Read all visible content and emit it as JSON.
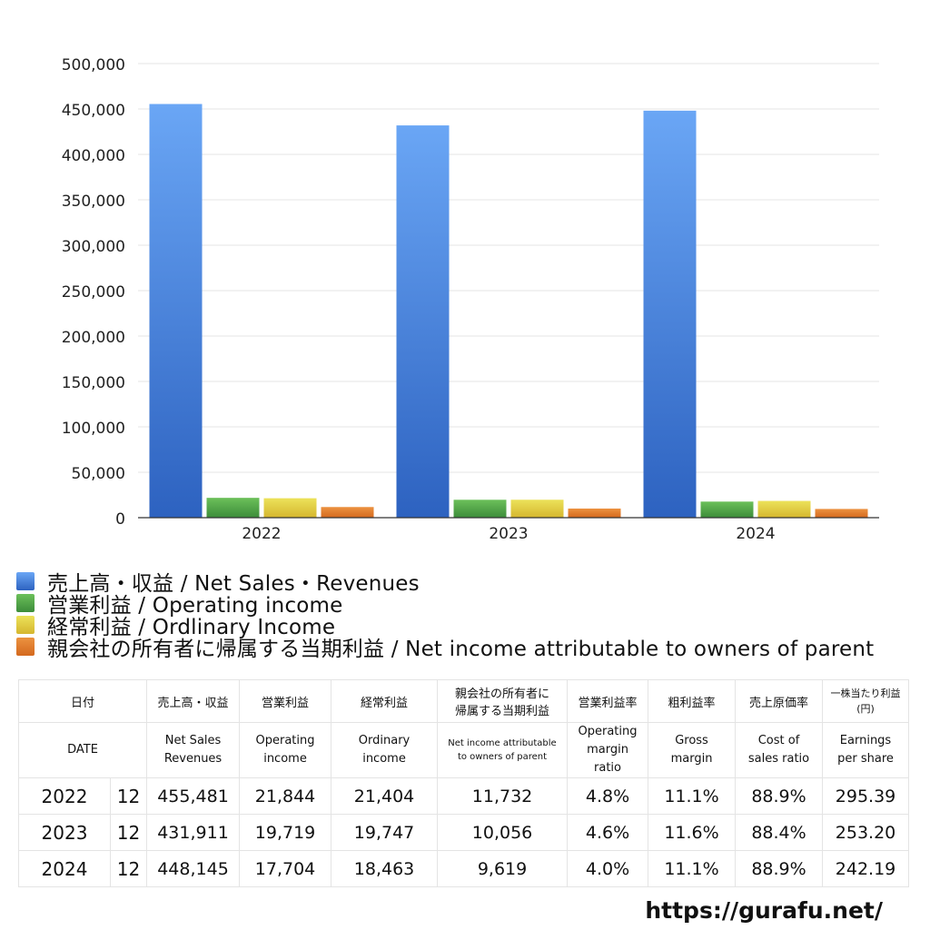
{
  "chart_data": {
    "type": "bar",
    "categories": [
      "2022",
      "2023",
      "2024"
    ],
    "ylim": [
      0,
      500000
    ],
    "yticks": [
      0,
      50000,
      100000,
      150000,
      200000,
      250000,
      300000,
      350000,
      400000,
      450000,
      500000
    ],
    "ytick_labels": [
      "0",
      "50,000",
      "100,000",
      "150,000",
      "200,000",
      "250,000",
      "300,000",
      "350,000",
      "400,000",
      "450,000",
      "500,000"
    ],
    "grid": true,
    "legend_position": "bottom",
    "series": [
      {
        "name": "売上高・収益 / Net Sales・Revenues",
        "color": "#3f7fdc",
        "values": [
          455481,
          431911,
          448145
        ]
      },
      {
        "name": "営業利益 / Operating income",
        "color": "#4ea24a",
        "values": [
          21844,
          19719,
          17704
        ]
      },
      {
        "name": "経常利益 / Ordlinary Income",
        "color": "#ddc63a",
        "values": [
          21404,
          19747,
          18463
        ]
      },
      {
        "name": "親会社の所有者に帰属する当期利益 / Net income attributable to owners of parent",
        "color": "#e07b2c",
        "values": [
          11732,
          10056,
          9619
        ]
      }
    ]
  },
  "table": {
    "header_jp": {
      "date": "日付",
      "net_sales": "売上高・収益",
      "operating_income": "営業利益",
      "ordinary_income": "経常利益",
      "net_income_line1": "親会社の所有者に",
      "net_income_line2": "帰属する当期利益",
      "operating_margin": "営業利益率",
      "gross_margin": "粗利益率",
      "cost_ratio": "売上原価率",
      "eps_line1": "一株当たり利益",
      "eps_line2": "(円)"
    },
    "header_en": {
      "date": "DATE",
      "net_sales_line1": "Net Sales",
      "net_sales_line2": "Revenues",
      "operating_income_line1": "Operating",
      "operating_income_line2": "income",
      "ordinary_income_line1": "Ordinary",
      "ordinary_income_line2": "income",
      "net_income_line1": "Net income attributable",
      "net_income_line2": "to owners of parent",
      "operating_margin_line1": "Operating",
      "operating_margin_line2": "margin",
      "operating_margin_line3": "ratio",
      "gross_margin_line1": "Gross",
      "gross_margin_line2": "margin",
      "cost_ratio_line1": "Cost of",
      "cost_ratio_line2": "sales ratio",
      "eps_line1": "Earnings",
      "eps_line2": "per share"
    },
    "rows": [
      {
        "year": "2022",
        "month": "12",
        "net_sales": "455,481",
        "operating_income": "21,844",
        "ordinary_income": "21,404",
        "net_income": "11,732",
        "operating_margin": "4.8%",
        "gross_margin": "11.1%",
        "cost_ratio": "88.9%",
        "eps": "295.39"
      },
      {
        "year": "2023",
        "month": "12",
        "net_sales": "431,911",
        "operating_income": "19,719",
        "ordinary_income": "19,747",
        "net_income": "10,056",
        "operating_margin": "4.6%",
        "gross_margin": "11.6%",
        "cost_ratio": "88.4%",
        "eps": "253.20"
      },
      {
        "year": "2024",
        "month": "12",
        "net_sales": "448,145",
        "operating_income": "17,704",
        "ordinary_income": "18,463",
        "net_income": "9,619",
        "operating_margin": "4.0%",
        "gross_margin": "11.1%",
        "cost_ratio": "88.9%",
        "eps": "242.19"
      }
    ]
  },
  "footer": {
    "url": "https://gurafu.net/"
  }
}
